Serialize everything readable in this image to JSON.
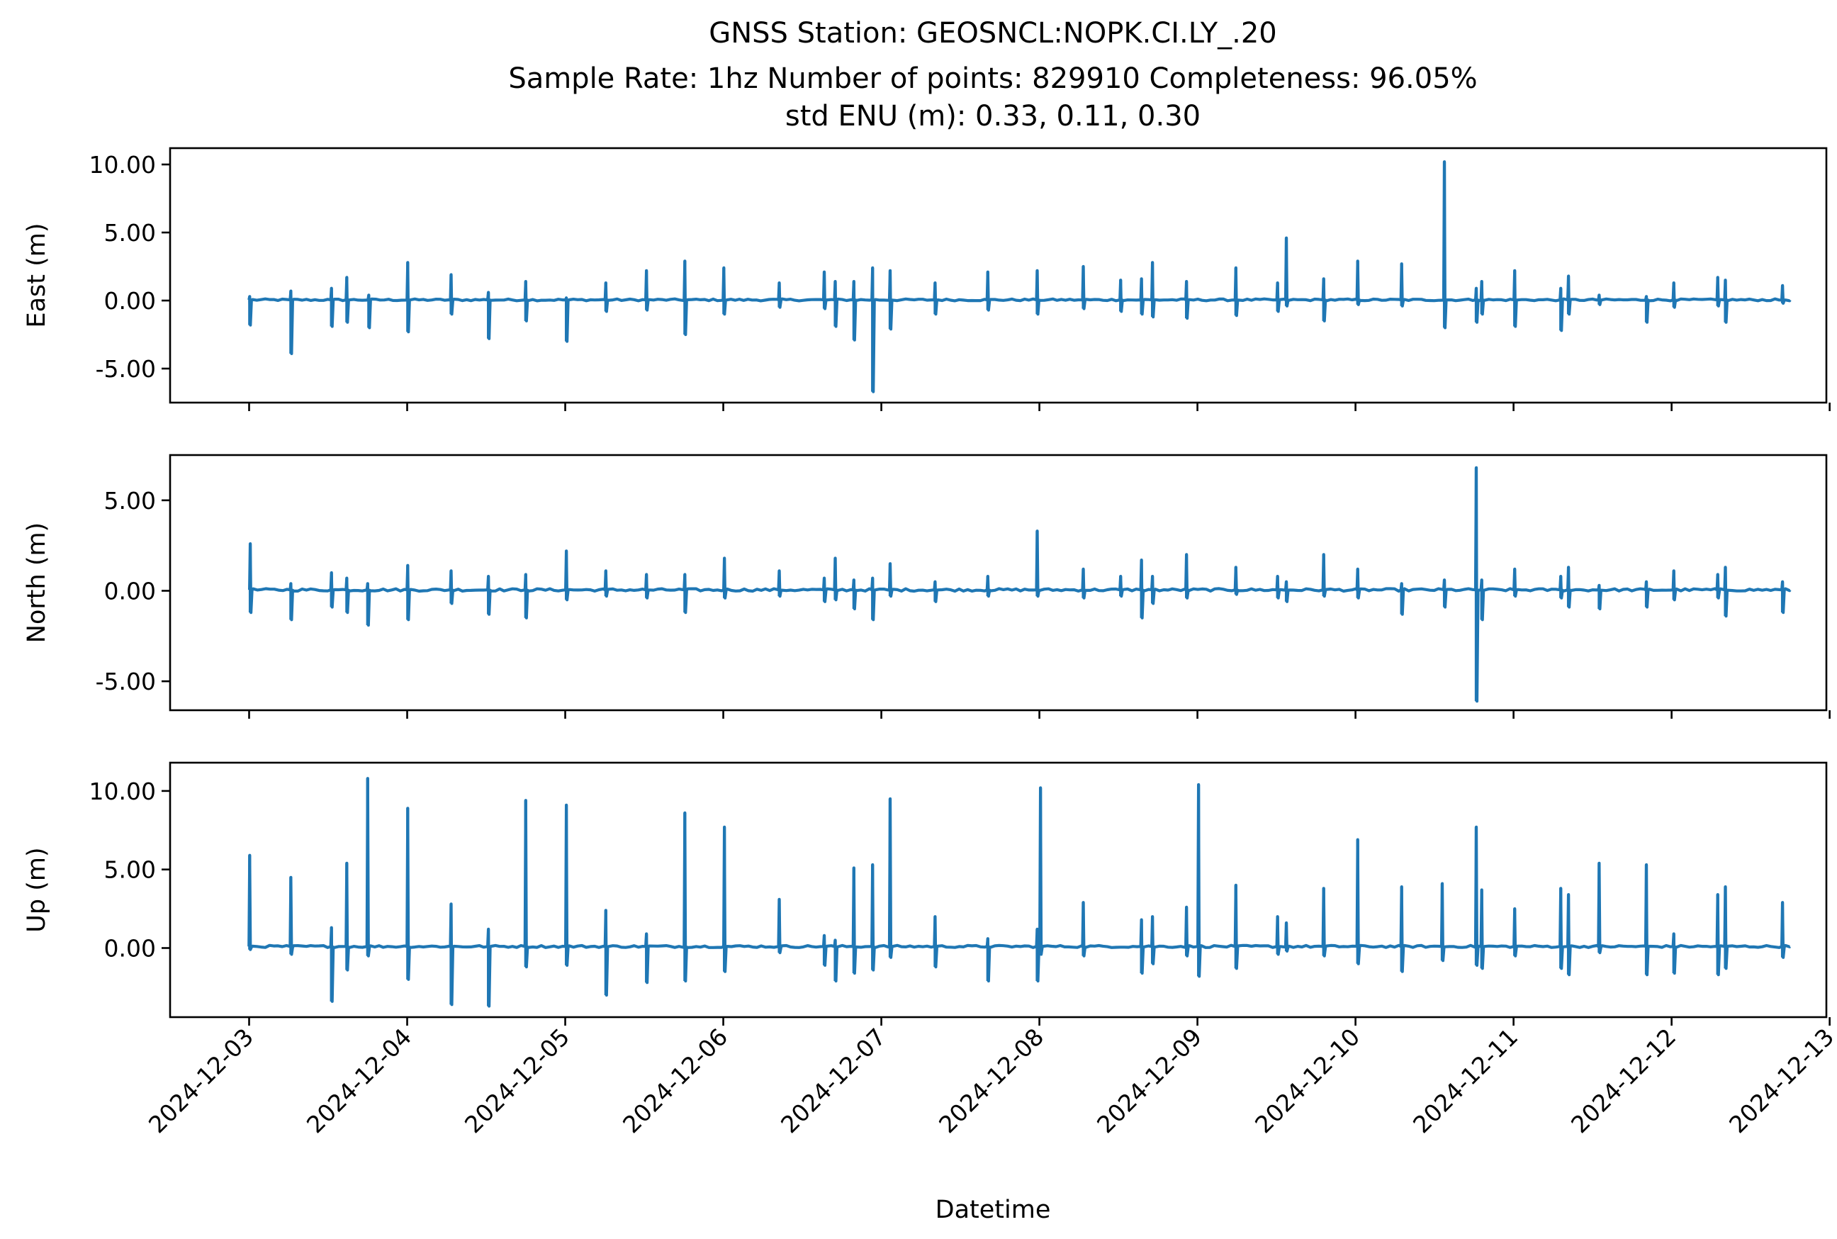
{
  "chart_data": {
    "type": "line",
    "title_lines": [
      "GNSS Station: GEOSNCL:NOPK.CI.LY_.20",
      "Sample Rate: 1hz   Number of points: 829910    Completeness:  96.05%",
      "std ENU (m):  0.33, 0.11, 0.30"
    ],
    "xlabel": "Datetime",
    "x_range": [
      "2024-12-02T12:00:00",
      "2024-12-12T23:30:00"
    ],
    "x_ticks": [
      "2024-12-03",
      "2024-12-04",
      "2024-12-05",
      "2024-12-06",
      "2024-12-07",
      "2024-12-08",
      "2024-12-09",
      "2024-12-10",
      "2024-12-11",
      "2024-12-12",
      "2024-12-13"
    ],
    "grid": false,
    "legend": "none",
    "series_color": "#1f77b4",
    "data_start": "2024-12-03T00:00:00",
    "data_end": "2024-12-12T18:00:00",
    "panels": [
      {
        "ylabel": "East (m)",
        "ylim": [
          -7.5,
          11.2
        ],
        "yticks": [
          -5,
          0,
          5,
          10
        ],
        "ytick_labels": [
          "-5.00",
          "0.00",
          "5.00",
          "10.00"
        ],
        "baseline": 0.05,
        "spikes": [
          {
            "t": "2024-12-03T00:05:00",
            "hi": 0.3,
            "lo": -1.8
          },
          {
            "t": "2024-12-03T06:20:00",
            "hi": 0.7,
            "lo": -3.9
          },
          {
            "t": "2024-12-03T12:30:00",
            "hi": 0.9,
            "lo": -1.9
          },
          {
            "t": "2024-12-03T14:50:00",
            "hi": 1.7,
            "lo": -1.6
          },
          {
            "t": "2024-12-03T18:10:00",
            "hi": 0.4,
            "lo": -2.0
          },
          {
            "t": "2024-12-04T00:05:00",
            "hi": 2.8,
            "lo": -2.3
          },
          {
            "t": "2024-12-04T06:40:00",
            "hi": 1.9,
            "lo": -1.0
          },
          {
            "t": "2024-12-04T12:20:00",
            "hi": 0.6,
            "lo": -2.8
          },
          {
            "t": "2024-12-04T18:00:00",
            "hi": 1.4,
            "lo": -1.5
          },
          {
            "t": "2024-12-05T00:10:00",
            "hi": 0.2,
            "lo": -3.0
          },
          {
            "t": "2024-12-05T06:10:00",
            "hi": 1.3,
            "lo": -0.8
          },
          {
            "t": "2024-12-05T12:20:00",
            "hi": 2.2,
            "lo": -0.7
          },
          {
            "t": "2024-12-05T18:10:00",
            "hi": 2.9,
            "lo": -2.5
          },
          {
            "t": "2024-12-06T00:05:00",
            "hi": 2.4,
            "lo": -1.0
          },
          {
            "t": "2024-12-06T08:30:00",
            "hi": 1.3,
            "lo": -0.5
          },
          {
            "t": "2024-12-06T15:20:00",
            "hi": 2.1,
            "lo": -0.6
          },
          {
            "t": "2024-12-06T17:00:00",
            "hi": 1.4,
            "lo": -1.9
          },
          {
            "t": "2024-12-06T19:50:00",
            "hi": 1.4,
            "lo": -2.9
          },
          {
            "t": "2024-12-06T22:40:00",
            "hi": 2.4,
            "lo": -6.7
          },
          {
            "t": "2024-12-07T01:20:00",
            "hi": 2.2,
            "lo": -2.1
          },
          {
            "t": "2024-12-07T08:10:00",
            "hi": 1.3,
            "lo": -1.0
          },
          {
            "t": "2024-12-07T16:10:00",
            "hi": 2.1,
            "lo": -0.7
          },
          {
            "t": "2024-12-07T23:40:00",
            "hi": 2.2,
            "lo": -1.0
          },
          {
            "t": "2024-12-08T06:40:00",
            "hi": 2.5,
            "lo": -0.6
          },
          {
            "t": "2024-12-08T12:20:00",
            "hi": 1.5,
            "lo": -0.8
          },
          {
            "t": "2024-12-08T15:30:00",
            "hi": 1.6,
            "lo": -1.0
          },
          {
            "t": "2024-12-08T17:10:00",
            "hi": 2.8,
            "lo": -1.2
          },
          {
            "t": "2024-12-08T22:20:00",
            "hi": 1.4,
            "lo": -1.3
          },
          {
            "t": "2024-12-09T05:50:00",
            "hi": 2.4,
            "lo": -1.1
          },
          {
            "t": "2024-12-09T12:10:00",
            "hi": 1.3,
            "lo": -0.8
          },
          {
            "t": "2024-12-09T13:30:00",
            "hi": 4.6,
            "lo": -0.4
          },
          {
            "t": "2024-12-09T19:10:00",
            "hi": 1.6,
            "lo": -1.5
          },
          {
            "t": "2024-12-10T00:20:00",
            "hi": 2.9,
            "lo": -0.3
          },
          {
            "t": "2024-12-10T07:00:00",
            "hi": 2.7,
            "lo": -0.4
          },
          {
            "t": "2024-12-10T13:30:00",
            "hi": 10.2,
            "lo": -2.0
          },
          {
            "t": "2024-12-10T18:20:00",
            "hi": 0.9,
            "lo": -1.6
          },
          {
            "t": "2024-12-10T19:10:00",
            "hi": 1.4,
            "lo": -1.0
          },
          {
            "t": "2024-12-11T00:10:00",
            "hi": 2.2,
            "lo": -1.9
          },
          {
            "t": "2024-12-11T07:10:00",
            "hi": 0.9,
            "lo": -2.2
          },
          {
            "t": "2024-12-11T08:20:00",
            "hi": 1.8,
            "lo": -1.0
          },
          {
            "t": "2024-12-11T13:00:00",
            "hi": 0.4,
            "lo": -0.3
          },
          {
            "t": "2024-12-11T20:10:00",
            "hi": 0.3,
            "lo": -1.6
          },
          {
            "t": "2024-12-12T00:20:00",
            "hi": 1.3,
            "lo": -0.5
          },
          {
            "t": "2024-12-12T07:00:00",
            "hi": 1.7,
            "lo": -0.4
          },
          {
            "t": "2024-12-12T08:10:00",
            "hi": 1.5,
            "lo": -1.6
          },
          {
            "t": "2024-12-12T16:50:00",
            "hi": 1.1,
            "lo": -0.2
          }
        ]
      },
      {
        "ylabel": "North (m)",
        "ylim": [
          -6.6,
          7.5
        ],
        "yticks": [
          -5,
          0,
          5
        ],
        "ytick_labels": [
          "-5.00",
          "0.00",
          "5.00"
        ],
        "baseline": 0.05,
        "spikes": [
          {
            "t": "2024-12-03T00:10:00",
            "hi": 2.6,
            "lo": -1.2
          },
          {
            "t": "2024-12-03T06:20:00",
            "hi": 0.4,
            "lo": -1.6
          },
          {
            "t": "2024-12-03T12:30:00",
            "hi": 1.0,
            "lo": -0.9
          },
          {
            "t": "2024-12-03T14:50:00",
            "hi": 0.7,
            "lo": -1.2
          },
          {
            "t": "2024-12-03T18:00:00",
            "hi": 0.4,
            "lo": -1.9
          },
          {
            "t": "2024-12-04T00:05:00",
            "hi": 1.4,
            "lo": -1.6
          },
          {
            "t": "2024-12-04T06:40:00",
            "hi": 1.1,
            "lo": -0.7
          },
          {
            "t": "2024-12-04T12:20:00",
            "hi": 0.8,
            "lo": -1.3
          },
          {
            "t": "2024-12-04T18:00:00",
            "hi": 0.9,
            "lo": -1.5
          },
          {
            "t": "2024-12-05T00:10:00",
            "hi": 2.2,
            "lo": -0.5
          },
          {
            "t": "2024-12-05T06:10:00",
            "hi": 1.1,
            "lo": -0.3
          },
          {
            "t": "2024-12-05T12:20:00",
            "hi": 0.9,
            "lo": -0.4
          },
          {
            "t": "2024-12-05T18:10:00",
            "hi": 0.9,
            "lo": -1.2
          },
          {
            "t": "2024-12-06T00:10:00",
            "hi": 1.8,
            "lo": -0.4
          },
          {
            "t": "2024-12-06T08:30:00",
            "hi": 1.1,
            "lo": -0.3
          },
          {
            "t": "2024-12-06T15:20:00",
            "hi": 0.7,
            "lo": -0.6
          },
          {
            "t": "2024-12-06T17:00:00",
            "hi": 1.8,
            "lo": -0.5
          },
          {
            "t": "2024-12-06T19:50:00",
            "hi": 0.6,
            "lo": -1.0
          },
          {
            "t": "2024-12-06T22:40:00",
            "hi": 0.7,
            "lo": -1.6
          },
          {
            "t": "2024-12-07T01:20:00",
            "hi": 1.5,
            "lo": -0.3
          },
          {
            "t": "2024-12-07T08:10:00",
            "hi": 0.5,
            "lo": -0.6
          },
          {
            "t": "2024-12-07T16:10:00",
            "hi": 0.8,
            "lo": -0.3
          },
          {
            "t": "2024-12-07T23:40:00",
            "hi": 3.3,
            "lo": -0.3
          },
          {
            "t": "2024-12-08T06:40:00",
            "hi": 1.2,
            "lo": -0.4
          },
          {
            "t": "2024-12-08T12:20:00",
            "hi": 0.8,
            "lo": -0.3
          },
          {
            "t": "2024-12-08T15:30:00",
            "hi": 1.7,
            "lo": -1.5
          },
          {
            "t": "2024-12-08T17:10:00",
            "hi": 0.8,
            "lo": -0.7
          },
          {
            "t": "2024-12-08T22:20:00",
            "hi": 2.0,
            "lo": -0.4
          },
          {
            "t": "2024-12-09T05:50:00",
            "hi": 1.3,
            "lo": -0.2
          },
          {
            "t": "2024-12-09T12:10:00",
            "hi": 0.8,
            "lo": -0.4
          },
          {
            "t": "2024-12-09T13:30:00",
            "hi": 0.5,
            "lo": -0.6
          },
          {
            "t": "2024-12-09T19:10:00",
            "hi": 2.0,
            "lo": -0.3
          },
          {
            "t": "2024-12-10T00:20:00",
            "hi": 1.2,
            "lo": -0.4
          },
          {
            "t": "2024-12-10T07:00:00",
            "hi": 0.4,
            "lo": -1.3
          },
          {
            "t": "2024-12-10T13:30:00",
            "hi": 0.6,
            "lo": -0.9
          },
          {
            "t": "2024-12-10T18:20:00",
            "hi": 6.8,
            "lo": -6.1
          },
          {
            "t": "2024-12-10T19:10:00",
            "hi": 0.6,
            "lo": -1.6
          },
          {
            "t": "2024-12-11T00:10:00",
            "hi": 1.2,
            "lo": -0.3
          },
          {
            "t": "2024-12-11T07:10:00",
            "hi": 0.8,
            "lo": -0.4
          },
          {
            "t": "2024-12-11T08:20:00",
            "hi": 1.3,
            "lo": -0.9
          },
          {
            "t": "2024-12-11T13:00:00",
            "hi": 0.3,
            "lo": -1.0
          },
          {
            "t": "2024-12-11T20:10:00",
            "hi": 0.5,
            "lo": -0.9
          },
          {
            "t": "2024-12-12T00:20:00",
            "hi": 1.1,
            "lo": -0.5
          },
          {
            "t": "2024-12-12T07:00:00",
            "hi": 0.9,
            "lo": -0.4
          },
          {
            "t": "2024-12-12T08:10:00",
            "hi": 1.3,
            "lo": -1.4
          },
          {
            "t": "2024-12-12T16:50:00",
            "hi": 0.5,
            "lo": -1.2
          }
        ]
      },
      {
        "ylabel": "Up (m)",
        "ylim": [
          -4.4,
          11.8
        ],
        "yticks": [
          0,
          5,
          10
        ],
        "ytick_labels": [
          "0.00",
          "5.00",
          "10.00"
        ],
        "baseline": 0.1,
        "spikes": [
          {
            "t": "2024-12-03T00:05:00",
            "hi": 5.9,
            "lo": -0.1
          },
          {
            "t": "2024-12-03T06:20:00",
            "hi": 4.5,
            "lo": -0.4
          },
          {
            "t": "2024-12-03T12:30:00",
            "hi": 1.3,
            "lo": -3.4
          },
          {
            "t": "2024-12-03T14:50:00",
            "hi": 5.4,
            "lo": -1.4
          },
          {
            "t": "2024-12-03T18:00:00",
            "hi": 10.8,
            "lo": -0.5
          },
          {
            "t": "2024-12-04T00:05:00",
            "hi": 8.9,
            "lo": -2.0
          },
          {
            "t": "2024-12-04T06:40:00",
            "hi": 2.8,
            "lo": -3.6
          },
          {
            "t": "2024-12-04T12:20:00",
            "hi": 1.2,
            "lo": -3.7
          },
          {
            "t": "2024-12-04T18:00:00",
            "hi": 9.4,
            "lo": -1.2
          },
          {
            "t": "2024-12-05T00:10:00",
            "hi": 9.1,
            "lo": -1.1
          },
          {
            "t": "2024-12-05T06:10:00",
            "hi": 2.4,
            "lo": -3.0
          },
          {
            "t": "2024-12-05T12:20:00",
            "hi": 0.9,
            "lo": -2.2
          },
          {
            "t": "2024-12-05T18:10:00",
            "hi": 8.6,
            "lo": -2.1
          },
          {
            "t": "2024-12-06T00:10:00",
            "hi": 7.7,
            "lo": -1.5
          },
          {
            "t": "2024-12-06T08:30:00",
            "hi": 3.1,
            "lo": -0.3
          },
          {
            "t": "2024-12-06T15:20:00",
            "hi": 0.8,
            "lo": -1.1
          },
          {
            "t": "2024-12-06T17:00:00",
            "hi": 0.5,
            "lo": -2.1
          },
          {
            "t": "2024-12-06T19:50:00",
            "hi": 5.1,
            "lo": -1.6
          },
          {
            "t": "2024-12-06T22:40:00",
            "hi": 5.3,
            "lo": -1.4
          },
          {
            "t": "2024-12-07T01:20:00",
            "hi": 9.5,
            "lo": -0.6
          },
          {
            "t": "2024-12-07T08:10:00",
            "hi": 2.0,
            "lo": -1.2
          },
          {
            "t": "2024-12-07T16:10:00",
            "hi": 0.6,
            "lo": -2.1
          },
          {
            "t": "2024-12-07T23:40:00",
            "hi": 1.2,
            "lo": -2.1
          },
          {
            "t": "2024-12-08T00:10:00",
            "hi": 10.2,
            "lo": -0.4
          },
          {
            "t": "2024-12-08T06:40:00",
            "hi": 2.9,
            "lo": -0.5
          },
          {
            "t": "2024-12-08T15:30:00",
            "hi": 1.8,
            "lo": -1.6
          },
          {
            "t": "2024-12-08T17:10:00",
            "hi": 2.0,
            "lo": -1.0
          },
          {
            "t": "2024-12-08T22:20:00",
            "hi": 2.6,
            "lo": -0.5
          },
          {
            "t": "2024-12-09T00:10:00",
            "hi": 10.4,
            "lo": -1.8
          },
          {
            "t": "2024-12-09T05:50:00",
            "hi": 4.0,
            "lo": -1.3
          },
          {
            "t": "2024-12-09T12:10:00",
            "hi": 2.0,
            "lo": -0.4
          },
          {
            "t": "2024-12-09T13:30:00",
            "hi": 1.6,
            "lo": -0.2
          },
          {
            "t": "2024-12-09T19:10:00",
            "hi": 3.8,
            "lo": -0.5
          },
          {
            "t": "2024-12-10T00:20:00",
            "hi": 6.9,
            "lo": -1.0
          },
          {
            "t": "2024-12-10T07:00:00",
            "hi": 3.9,
            "lo": -1.5
          },
          {
            "t": "2024-12-10T13:10:00",
            "hi": 4.1,
            "lo": -0.8
          },
          {
            "t": "2024-12-10T18:20:00",
            "hi": 7.7,
            "lo": -1.1
          },
          {
            "t": "2024-12-10T19:10:00",
            "hi": 3.7,
            "lo": -1.3
          },
          {
            "t": "2024-12-11T00:10:00",
            "hi": 2.5,
            "lo": -0.5
          },
          {
            "t": "2024-12-11T07:10:00",
            "hi": 3.8,
            "lo": -1.3
          },
          {
            "t": "2024-12-11T08:20:00",
            "hi": 3.4,
            "lo": -1.7
          },
          {
            "t": "2024-12-11T13:00:00",
            "hi": 5.4,
            "lo": -0.3
          },
          {
            "t": "2024-12-11T20:10:00",
            "hi": 5.3,
            "lo": -1.7
          },
          {
            "t": "2024-12-12T00:20:00",
            "hi": 0.9,
            "lo": -1.6
          },
          {
            "t": "2024-12-12T07:00:00",
            "hi": 3.4,
            "lo": -1.7
          },
          {
            "t": "2024-12-12T08:10:00",
            "hi": 3.9,
            "lo": -1.3
          },
          {
            "t": "2024-12-12T16:50:00",
            "hi": 2.9,
            "lo": -0.6
          }
        ]
      }
    ]
  }
}
